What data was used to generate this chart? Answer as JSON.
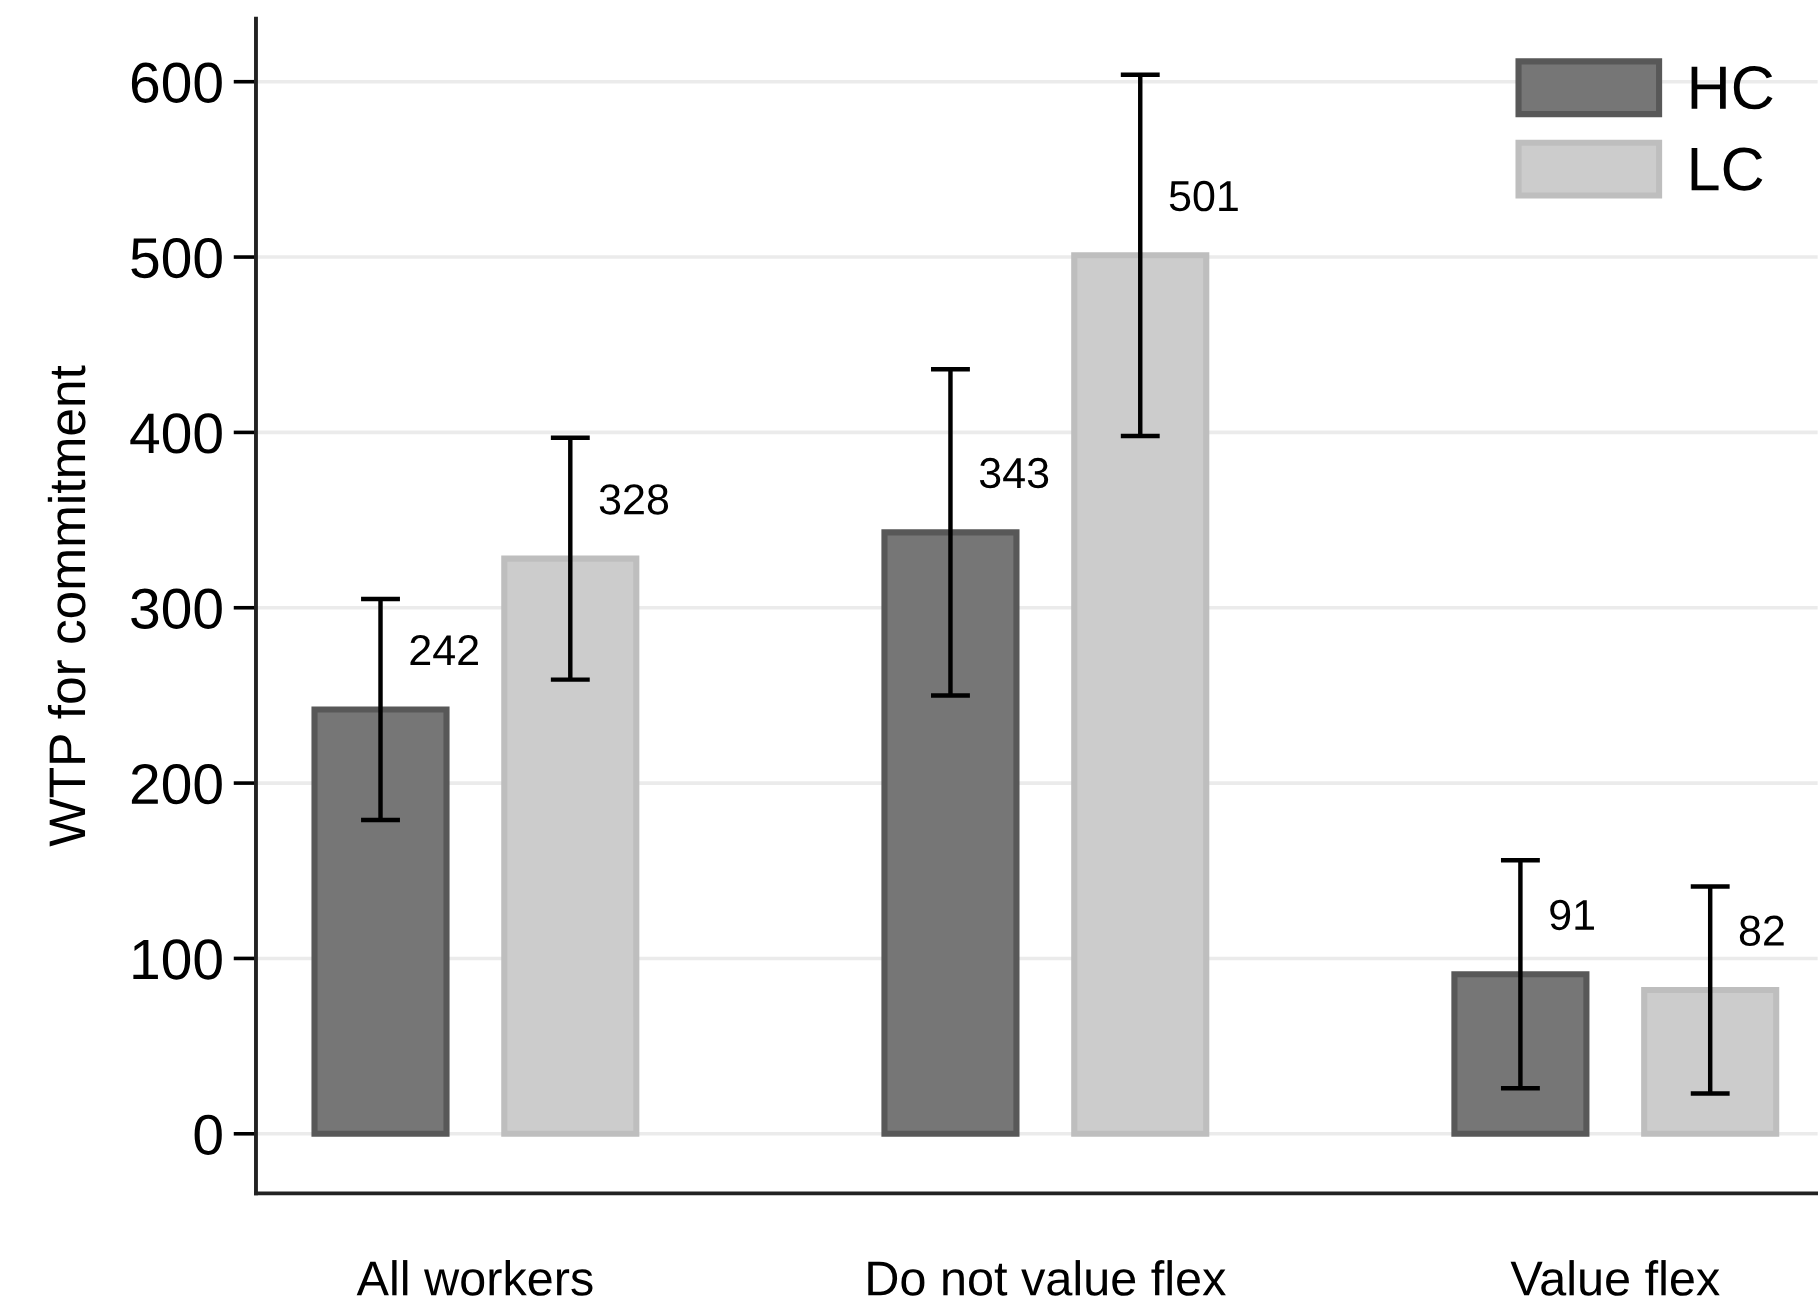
{
  "chart_data": {
    "type": "bar",
    "ylabel": "WTP for commitment",
    "categories": [
      "All workers",
      "Do not value flex",
      "Value flex"
    ],
    "series": [
      {
        "name": "HC",
        "color": "#767676",
        "values": [
          242,
          343,
          91
        ],
        "errors": [
          63,
          93,
          65
        ]
      },
      {
        "name": "LC",
        "color": "#cccccc",
        "values": [
          328,
          501,
          82
        ],
        "errors": [
          69,
          103,
          59
        ]
      }
    ],
    "ylim": [
      -34,
      636
    ],
    "yticks": [
      0,
      100,
      200,
      300,
      400,
      500,
      600
    ],
    "grid": "y",
    "legend": "top right",
    "data_labels": true
  }
}
